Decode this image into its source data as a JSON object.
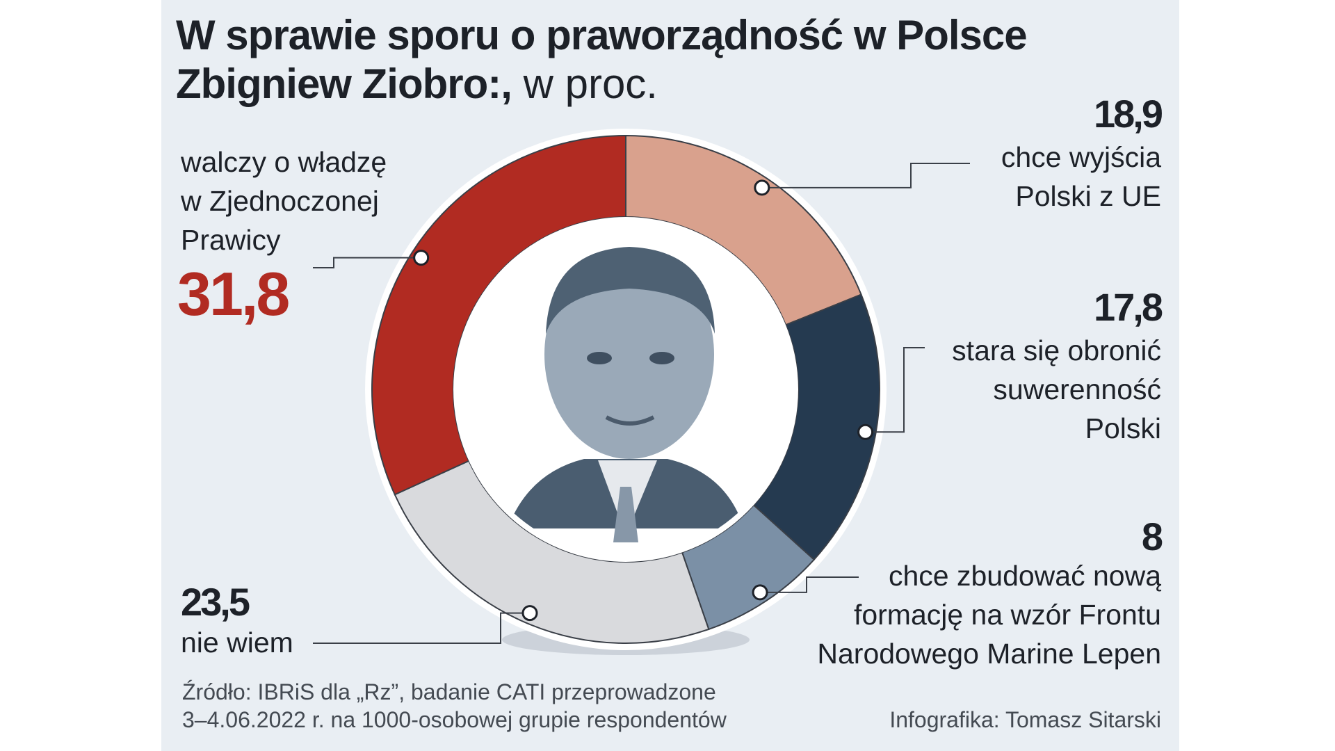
{
  "title": {
    "line1": "W sprawie sporu o praworządność w Polsce",
    "line2_bold": "Zbigniew Ziobro:,",
    "line2_unit": " w proc."
  },
  "chart_data": {
    "type": "pie",
    "title": "W sprawie sporu o praworządność w Polsce Zbigniew Ziobro:, w proc.",
    "unit": "w proc.",
    "donut": true,
    "slices": [
      {
        "label": "chce wyjścia Polski z UE",
        "value_label": "18,9",
        "value": 18.9,
        "color": "#d9a18d"
      },
      {
        "label": "stara się obronić suwerenność Polski",
        "value_label": "17,8",
        "value": 17.8,
        "color": "#253a50"
      },
      {
        "label": "chce zbudować nową formację na wzór Frontu Narodowego Marine Lepen",
        "value_label": "8",
        "value": 8,
        "color": "#7b90a6"
      },
      {
        "label": "nie wiem",
        "value_label": "23,5",
        "value": 23.5,
        "color": "#d9dadd"
      },
      {
        "label": "walczy o władzę w Zjednoczonej Prawicy",
        "value_label": "31,8",
        "value": 31.8,
        "color": "#b12b22"
      }
    ]
  },
  "labels": {
    "s0": {
      "value": "18,9",
      "lines": [
        "chce wyjścia",
        "Polski z UE"
      ]
    },
    "s1": {
      "value": "17,8",
      "lines": [
        "stara się obronić",
        "suwerenność",
        "Polski"
      ]
    },
    "s2": {
      "value": "8",
      "lines": [
        "chce zbudować nową",
        "formację na wzór Frontu",
        "Narodowego Marine Lepen"
      ]
    },
    "s3": {
      "value": "23,5",
      "lines": [
        "nie wiem"
      ]
    },
    "s4": {
      "value": "31,8",
      "lines": [
        "walczy o władzę",
        "w Zjednoczonej",
        "Prawicy"
      ]
    }
  },
  "colors": {
    "panel_bg": "#e9eef3",
    "highlight_value": "#b12b22",
    "text": "#1d2128",
    "leader_line": "#3a3f47"
  },
  "portrait": {
    "icon": "person-portrait-icon"
  },
  "footer": {
    "source_line1": "Źródło: IBRiS dla „Rz”, badanie CATI przeprowadzone",
    "source_line2": "3–4.06.2022 r. na 1000-osobowej grupie respondentów",
    "credit": "Infografika: Tomasz Sitarski"
  }
}
